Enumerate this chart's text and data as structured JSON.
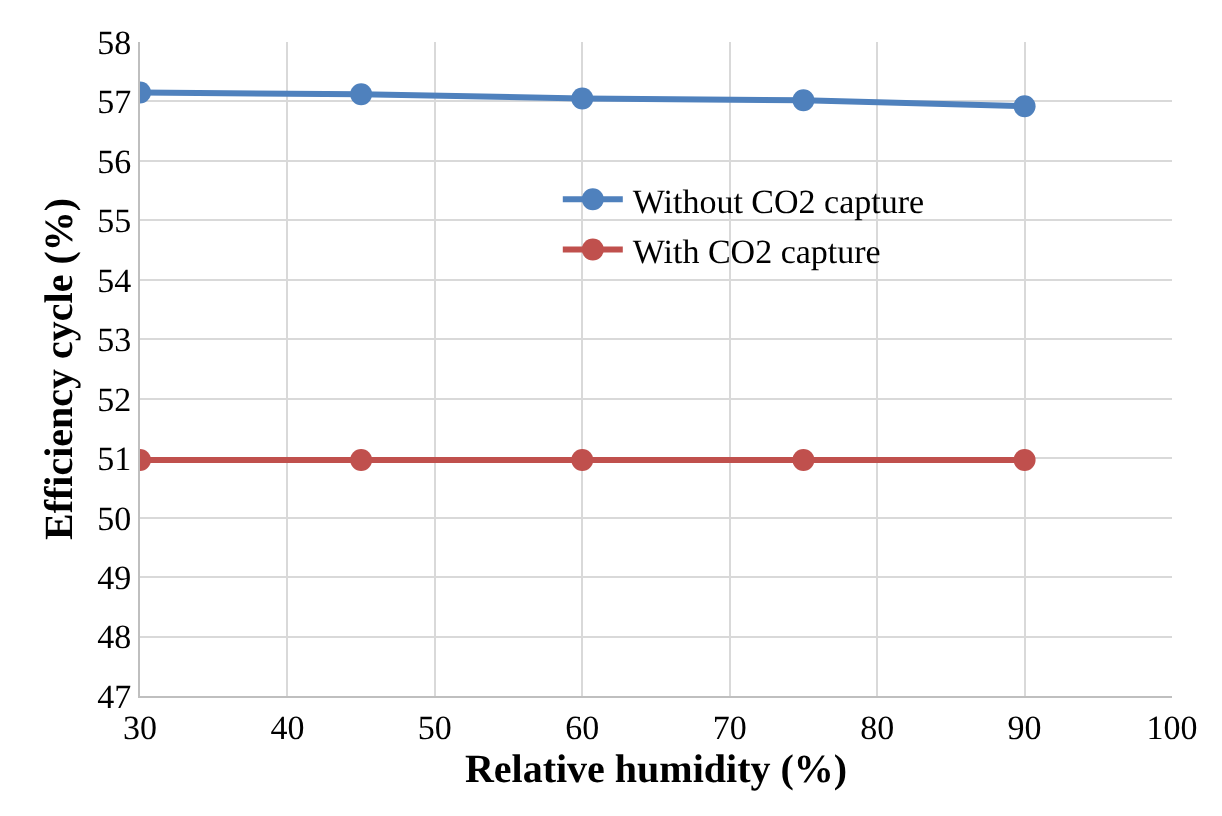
{
  "chart_data": {
    "type": "line",
    "xlabel": "Relative humidity (%)",
    "ylabel": "Efficiency cycle (%)",
    "x": [
      30,
      45,
      60,
      75,
      90
    ],
    "series": [
      {
        "name": "Without CO2 capture",
        "color": "#4f81bd",
        "values": [
          57.15,
          57.12,
          57.05,
          57.02,
          56.92
        ]
      },
      {
        "name": "With CO2 capture",
        "color": "#c0504d",
        "values": [
          50.97,
          50.97,
          50.97,
          50.97,
          50.97
        ]
      }
    ],
    "xlim": [
      30,
      100
    ],
    "xticks": [
      30,
      40,
      50,
      60,
      70,
      80,
      90,
      100
    ],
    "ylim": [
      47,
      58
    ],
    "yticks": [
      47,
      48,
      49,
      50,
      51,
      52,
      53,
      54,
      55,
      56,
      57,
      58
    ],
    "grid": true,
    "legend": "right",
    "marker": "circle",
    "line_style": "solid"
  }
}
